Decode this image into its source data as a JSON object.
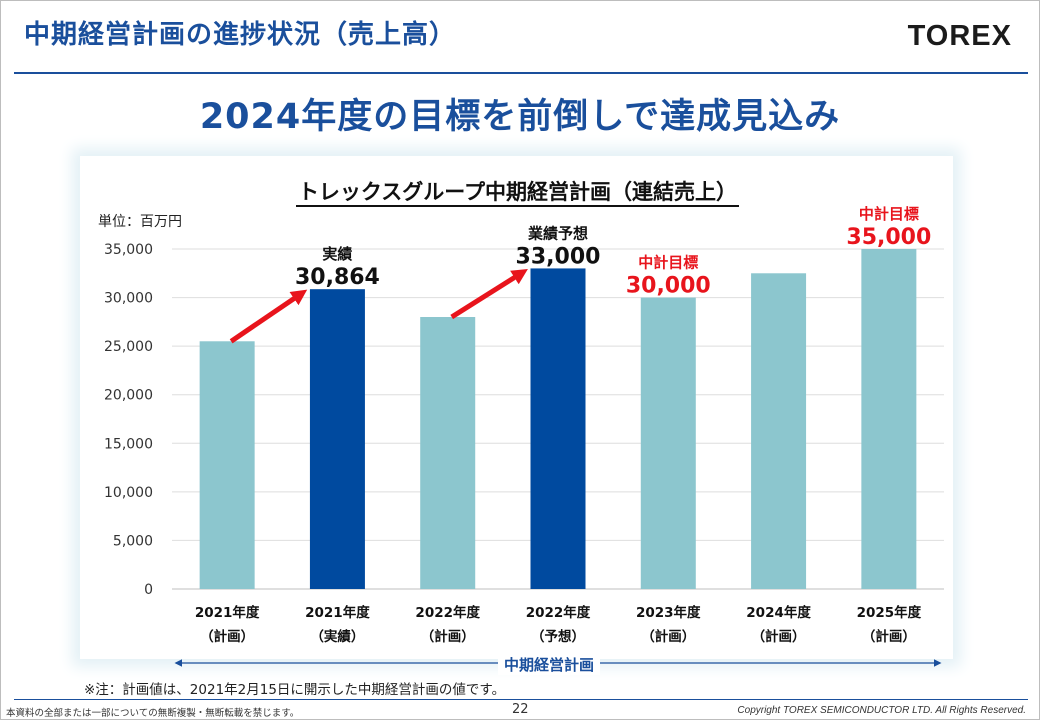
{
  "slide": {
    "title": "中期経営計画の進捗状況（売上高）",
    "logo": "TOREX",
    "headline": "2024年度の目標を前倒しで達成見込み"
  },
  "chart_data": {
    "type": "bar",
    "title": "トレックスグループ中期経営計画（連結売上）",
    "unit_label": "単位：百万円",
    "ylim": [
      0,
      35000
    ],
    "yticks": [
      0,
      5000,
      10000,
      15000,
      20000,
      25000,
      30000,
      35000
    ],
    "ytick_labels": [
      "0",
      "5,000",
      "10,000",
      "15,000",
      "20,000",
      "25,000",
      "30,000",
      "35,000"
    ],
    "categories": [
      {
        "year": "2021年度",
        "kind": "（計画）"
      },
      {
        "year": "2021年度",
        "kind": "（実績）"
      },
      {
        "year": "2022年度",
        "kind": "（計画）"
      },
      {
        "year": "2022年度",
        "kind": "（予想）"
      },
      {
        "year": "2023年度",
        "kind": "（計画）"
      },
      {
        "year": "2024年度",
        "kind": "（計画）"
      },
      {
        "year": "2025年度",
        "kind": "（計画）"
      }
    ],
    "values": [
      25500,
      30864,
      28000,
      33000,
      30000,
      32500,
      35000
    ],
    "bar_colors": [
      "#8cc6ce",
      "#004a9f",
      "#8cc6ce",
      "#004a9f",
      "#8cc6ce",
      "#8cc6ce",
      "#8cc6ce"
    ],
    "annotations": [
      {
        "bar": 1,
        "label": "実績",
        "value": "30,864",
        "color": "#111111"
      },
      {
        "bar": 3,
        "label": "業績予想",
        "value": "33,000",
        "color": "#111111"
      },
      {
        "bar": 4,
        "label": "中計目標",
        "value": "30,000",
        "color": "#e8141c"
      },
      {
        "bar": 6,
        "label": "中計目標",
        "value": "35,000",
        "color": "#e8141c"
      }
    ],
    "arrows": [
      {
        "from_bar": 0,
        "to_bar": 1
      },
      {
        "from_bar": 2,
        "to_bar": 3
      }
    ],
    "arrow_color": "#e8141c",
    "grid": true,
    "legend": "none"
  },
  "period_label": "中期経営計画",
  "note": "※注：計画値は、2021年2月15日に開示した中期経営計画の値です。",
  "footer": {
    "left": "本資料の全部または一部についての無断複製・無断転載を禁じます。",
    "page": "22",
    "right": "Copyright TOREX SEMICONDUCTOR LTD.  All Rights Reserved."
  },
  "colors": {
    "brand": "#1a4f9c",
    "plan_bar": "#8cc6ce",
    "actual_bar": "#004a9f",
    "target_red": "#e8141c"
  }
}
